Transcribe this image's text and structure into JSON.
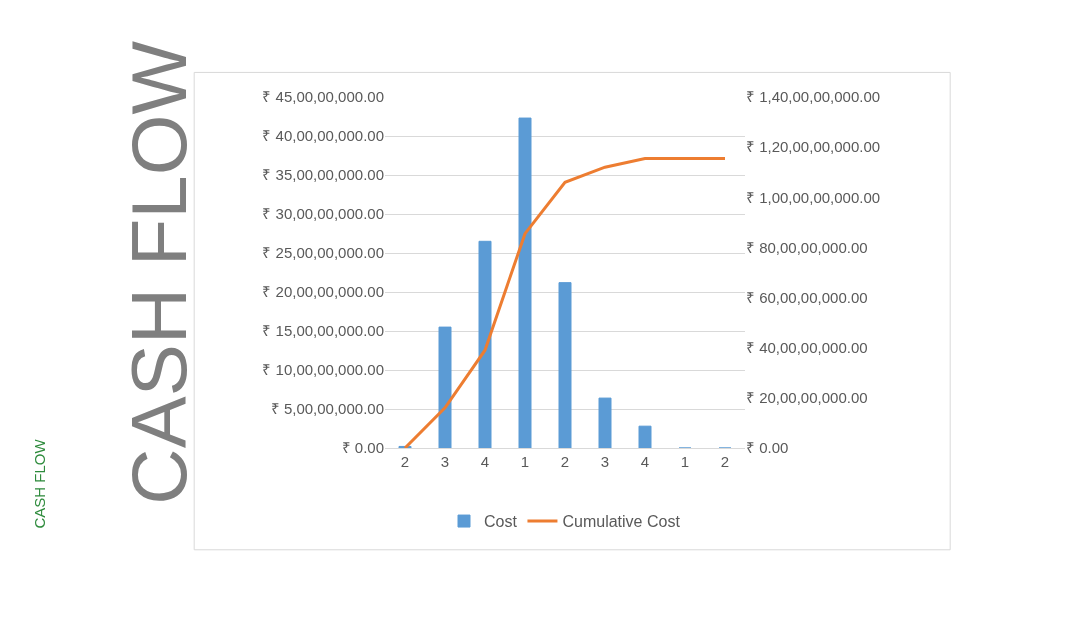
{
  "chart_data": {
    "type": "bar",
    "title": "CASH FLOW",
    "annotations": [
      "CASH FLOW"
    ],
    "categories": [
      "2",
      "3",
      "4",
      "1",
      "2",
      "3",
      "4",
      "1",
      "2"
    ],
    "series": [
      {
        "name": "Cost",
        "color": "#5b9bd5",
        "values": [
          2000000,
          155000000,
          265000000,
          423000000,
          212000000,
          64000000,
          28000000,
          0,
          0
        ]
      },
      {
        "name": "Cumulative Cost",
        "type": "line",
        "axis": "y2",
        "color": "#ed7d31",
        "values": [
          0,
          160000000,
          390000000,
          855000000,
          1060000000,
          1120000000,
          1155000000,
          1155000000,
          1155000000
        ]
      }
    ],
    "ylim": [
      0,
      450000000
    ],
    "yticks": [
      {
        "value": 0,
        "label": "₹ 0.00"
      },
      {
        "value": 50000000,
        "label": "₹ 5,00,00,000.00"
      },
      {
        "value": 100000000,
        "label": "₹ 10,00,00,000.00"
      },
      {
        "value": 150000000,
        "label": "₹ 15,00,00,000.00"
      },
      {
        "value": 200000000,
        "label": "₹ 20,00,00,000.00"
      },
      {
        "value": 250000000,
        "label": "₹ 25,00,00,000.00"
      },
      {
        "value": 300000000,
        "label": "₹ 30,00,00,000.00"
      },
      {
        "value": 350000000,
        "label": "₹ 35,00,00,000.00"
      },
      {
        "value": 400000000,
        "label": "₹ 40,00,00,000.00"
      },
      {
        "value": 450000000,
        "label": "₹ 45,00,00,000.00"
      }
    ],
    "y2lim": [
      0,
      1400000000
    ],
    "y2ticks": [
      {
        "value": 0,
        "label": "₹ 0.00"
      },
      {
        "value": 200000000,
        "label": "₹ 20,00,00,000.00"
      },
      {
        "value": 400000000,
        "label": "₹ 40,00,00,000.00"
      },
      {
        "value": 600000000,
        "label": "₹ 60,00,00,000.00"
      },
      {
        "value": 800000000,
        "label": "₹ 80,00,00,000.00"
      },
      {
        "value": 1000000000,
        "label": "₹ 1,00,00,00,000.00"
      },
      {
        "value": 1200000000,
        "label": "₹ 1,20,00,00,000.00"
      },
      {
        "value": 1400000000,
        "label": "₹ 1,40,00,00,000.00"
      }
    ],
    "grid": "y",
    "legend": "bottom",
    "marker": "none",
    "line_style": "solid"
  }
}
